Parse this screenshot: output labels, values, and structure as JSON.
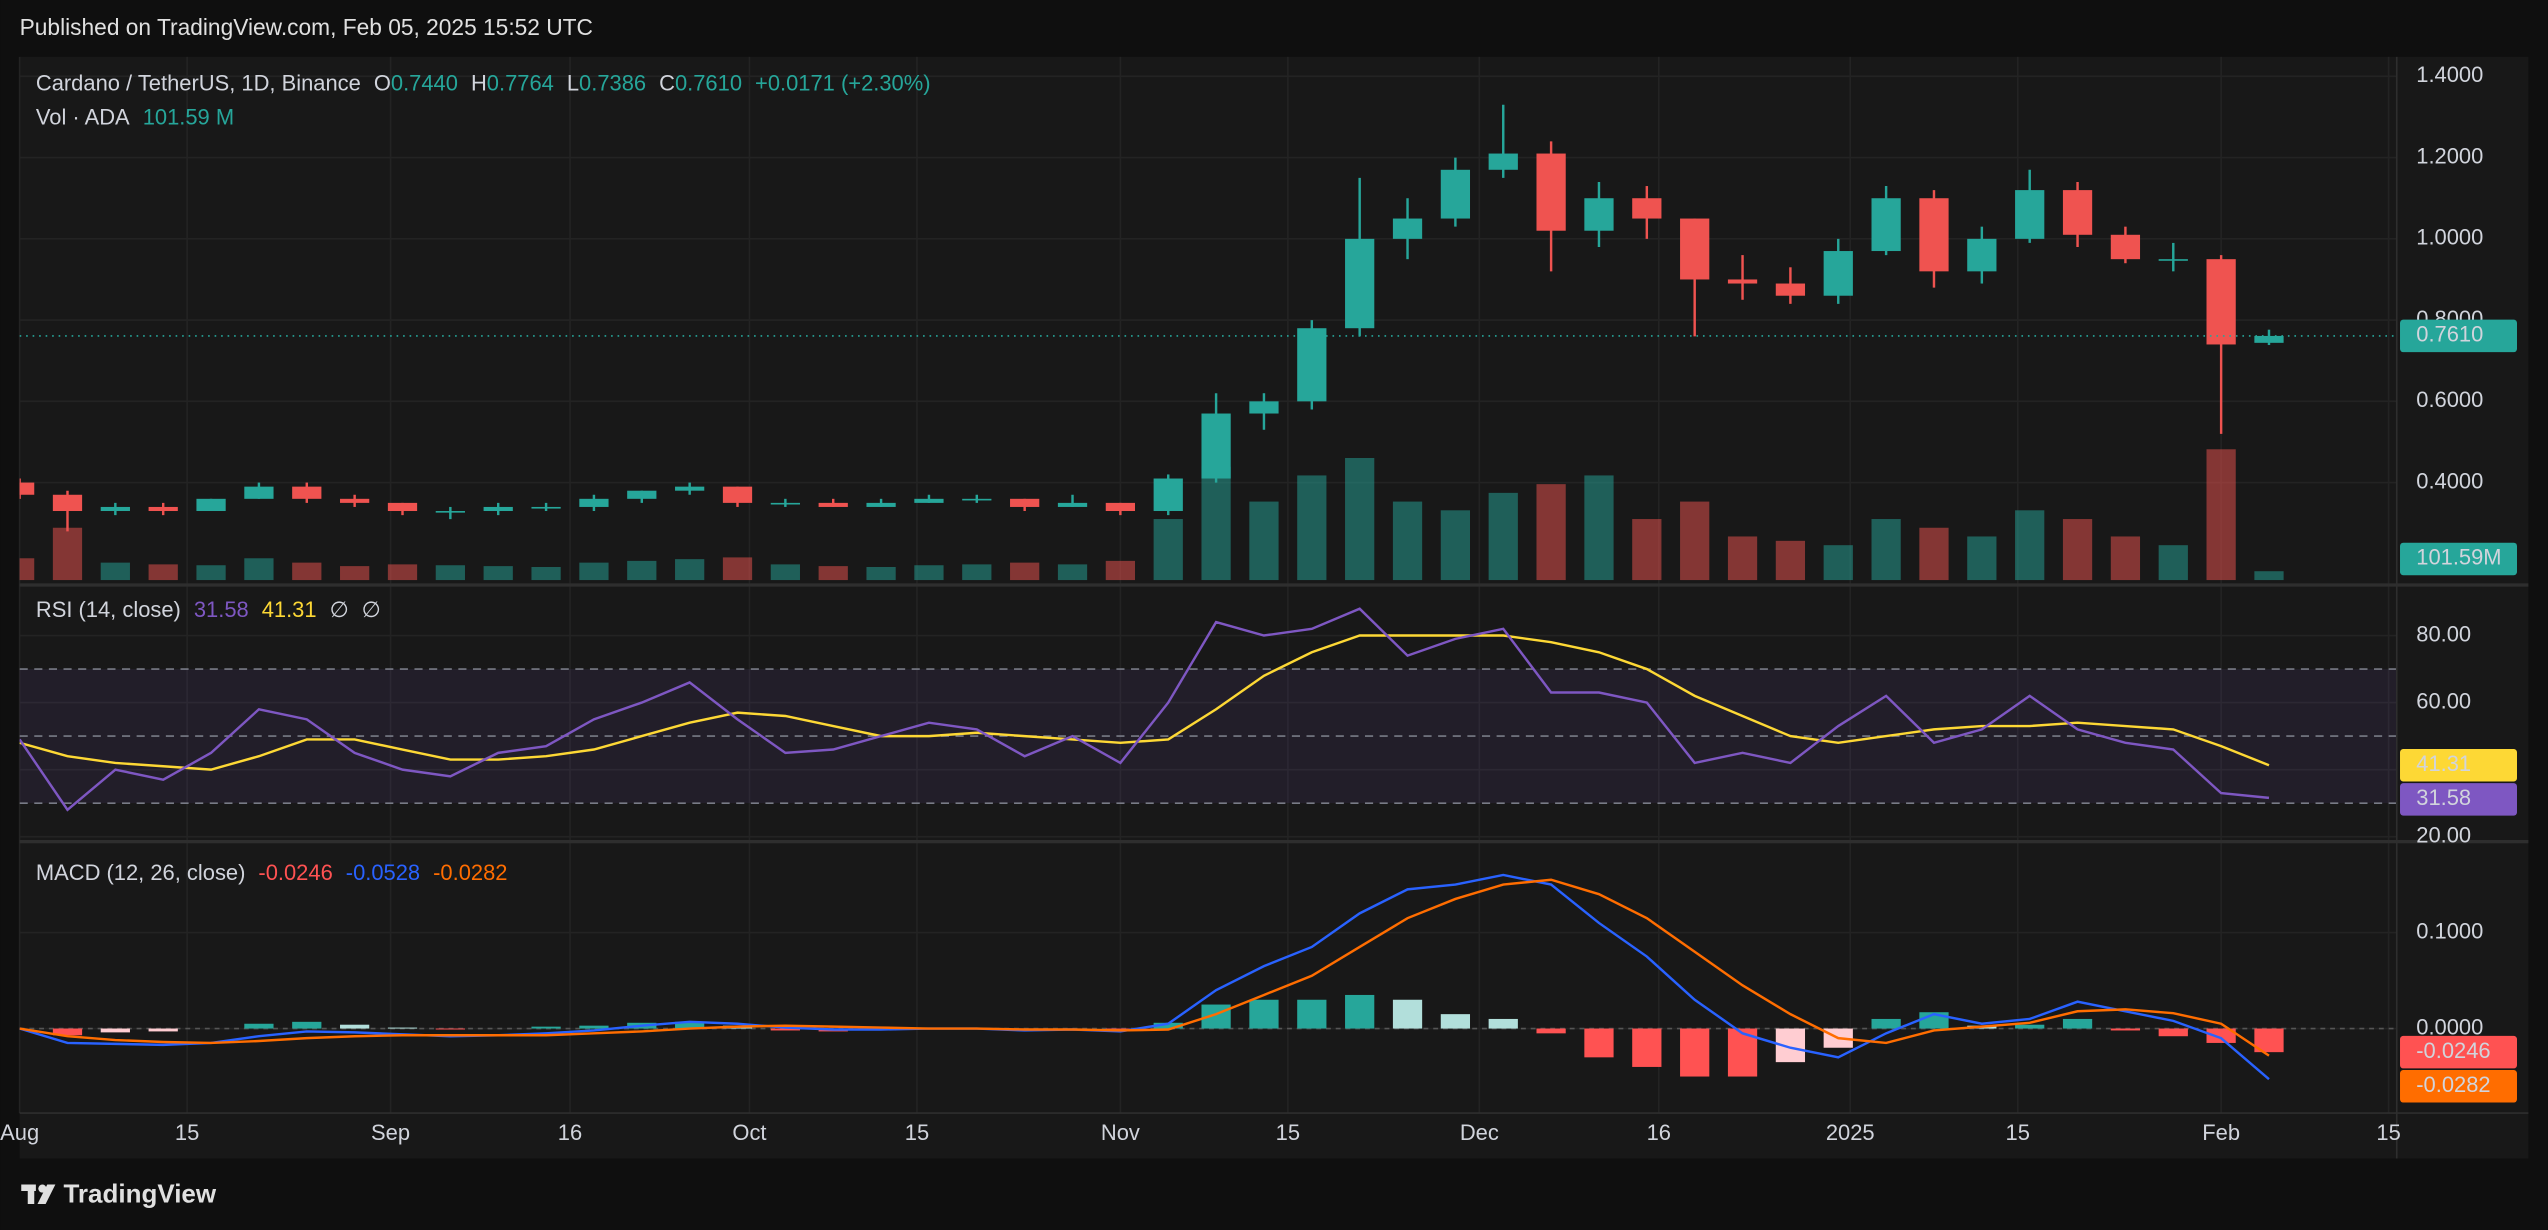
{
  "chart_data": {
    "type": "candlestick",
    "header": "Published on TradingView.com, Feb 05, 2025 15:52 UTC",
    "title": "Cardano / TetherUS, 1D, Binance",
    "legend": [
      {
        "key": "O",
        "text": "0.7440"
      },
      {
        "key": "H",
        "text": "0.7764"
      },
      {
        "key": "L",
        "text": "0.7386"
      },
      {
        "key": "C",
        "text": "0.7610"
      },
      {
        "text": "+0.0171 (+2.30%)"
      }
    ],
    "footer": "TradingView",
    "up_color": "#26a69a",
    "down_color": "#ef5350",
    "grid": true,
    "xlim": [
      "2024-08-01",
      "2025-02-15"
    ],
    "xticks": [
      {
        "value": "2024-08-01",
        "label": "Aug"
      },
      {
        "value": "2024-08-15",
        "label": "15"
      },
      {
        "value": "2024-09-01",
        "label": "Sep"
      },
      {
        "value": "2024-09-16",
        "label": "16"
      },
      {
        "value": "2024-10-01",
        "label": "Oct"
      },
      {
        "value": "2024-10-15",
        "label": "15"
      },
      {
        "value": "2024-11-01",
        "label": "Nov"
      },
      {
        "value": "2024-11-15",
        "label": "15"
      },
      {
        "value": "2024-12-01",
        "label": "Dec"
      },
      {
        "value": "2024-12-16",
        "label": "16"
      },
      {
        "value": "2025-01-01",
        "label": "2025"
      },
      {
        "value": "2025-01-15",
        "label": "15"
      },
      {
        "value": "2025-02-01",
        "label": "Feb"
      },
      {
        "value": "2025-02-15",
        "label": "15"
      }
    ],
    "ylim": [
      0.16,
      1.448
    ],
    "yticks": [
      {
        "value": 0.4,
        "label": "0.4000"
      },
      {
        "value": 0.6,
        "label": "0.6000"
      },
      {
        "value": 0.8,
        "label": "0.8000"
      },
      {
        "value": 1.0,
        "label": "1.0000"
      },
      {
        "value": 1.2,
        "label": "1.2000"
      },
      {
        "value": 1.4,
        "label": "1.4000"
      }
    ],
    "last_price": 0.761,
    "x": [
      "2024-08-01",
      "2024-08-05",
      "2024-08-09",
      "2024-08-13",
      "2024-08-17",
      "2024-08-21",
      "2024-08-25",
      "2024-08-29",
      "2024-09-02",
      "2024-09-06",
      "2024-09-10",
      "2024-09-14",
      "2024-09-18",
      "2024-09-22",
      "2024-09-26",
      "2024-09-30",
      "2024-10-04",
      "2024-10-08",
      "2024-10-12",
      "2024-10-16",
      "2024-10-20",
      "2024-10-24",
      "2024-10-28",
      "2024-11-01",
      "2024-11-05",
      "2024-11-09",
      "2024-11-13",
      "2024-11-17",
      "2024-11-21",
      "2024-11-25",
      "2024-11-29",
      "2024-12-03",
      "2024-12-07",
      "2024-12-11",
      "2024-12-15",
      "2024-12-19",
      "2024-12-23",
      "2024-12-27",
      "2024-12-31",
      "2025-01-04",
      "2025-01-08",
      "2025-01-12",
      "2025-01-16",
      "2025-01-20",
      "2025-01-24",
      "2025-01-28",
      "2025-02-01",
      "2025-02-05"
    ],
    "open": [
      0.4,
      0.37,
      0.33,
      0.34,
      0.33,
      0.36,
      0.39,
      0.36,
      0.35,
      0.33,
      0.33,
      0.34,
      0.34,
      0.36,
      0.38,
      0.39,
      0.35,
      0.35,
      0.34,
      0.35,
      0.36,
      0.36,
      0.34,
      0.35,
      0.33,
      0.41,
      0.57,
      0.6,
      0.78,
      1.0,
      1.05,
      1.17,
      1.21,
      1.02,
      1.1,
      1.05,
      0.9,
      0.89,
      0.86,
      0.97,
      1.1,
      0.92,
      1.0,
      1.12,
      1.01,
      0.95,
      0.95,
      0.744
    ],
    "high": [
      0.41,
      0.38,
      0.35,
      0.35,
      0.36,
      0.4,
      0.4,
      0.37,
      0.35,
      0.34,
      0.35,
      0.35,
      0.37,
      0.38,
      0.4,
      0.39,
      0.36,
      0.36,
      0.36,
      0.37,
      0.37,
      0.36,
      0.37,
      0.35,
      0.42,
      0.62,
      0.62,
      0.8,
      1.15,
      1.1,
      1.2,
      1.33,
      1.24,
      1.14,
      1.13,
      1.05,
      0.96,
      0.93,
      1.0,
      1.13,
      1.12,
      1.03,
      1.17,
      1.14,
      1.03,
      0.99,
      0.96,
      0.7764
    ],
    "low": [
      0.36,
      0.28,
      0.32,
      0.32,
      0.33,
      0.36,
      0.35,
      0.34,
      0.32,
      0.31,
      0.32,
      0.33,
      0.33,
      0.35,
      0.37,
      0.34,
      0.34,
      0.34,
      0.34,
      0.35,
      0.35,
      0.33,
      0.34,
      0.32,
      0.32,
      0.4,
      0.53,
      0.58,
      0.76,
      0.95,
      1.03,
      1.15,
      0.92,
      0.98,
      1.0,
      0.76,
      0.85,
      0.84,
      0.84,
      0.96,
      0.88,
      0.89,
      0.99,
      0.98,
      0.94,
      0.92,
      0.52,
      0.7386
    ],
    "close": [
      0.37,
      0.33,
      0.34,
      0.33,
      0.36,
      0.39,
      0.36,
      0.35,
      0.33,
      0.33,
      0.34,
      0.34,
      0.36,
      0.38,
      0.39,
      0.35,
      0.35,
      0.34,
      0.35,
      0.36,
      0.36,
      0.34,
      0.35,
      0.33,
      0.41,
      0.57,
      0.6,
      0.78,
      1.0,
      1.05,
      1.17,
      1.21,
      1.02,
      1.1,
      1.05,
      0.9,
      0.89,
      0.86,
      0.97,
      1.1,
      0.92,
      1.0,
      1.12,
      1.01,
      0.95,
      0.95,
      0.74,
      0.761
    ],
    "volume": {
      "name": "Vol · ADA",
      "value_label": "101.59 M",
      "axis_label": "101.59M",
      "ylim": [
        0,
        6000
      ],
      "values": [
        250,
        600,
        200,
        180,
        170,
        250,
        200,
        160,
        180,
        170,
        160,
        150,
        200,
        220,
        240,
        260,
        180,
        160,
        150,
        170,
        180,
        200,
        180,
        220,
        700,
        1300,
        900,
        1200,
        1400,
        900,
        800,
        1000,
        1100,
        1200,
        700,
        900,
        500,
        450,
        400,
        700,
        600,
        500,
        800,
        700,
        500,
        400,
        1500,
        101.59
      ]
    },
    "rsi": {
      "title": "RSI (14, close)",
      "na": [
        "∅",
        "∅"
      ],
      "ylim": [
        19,
        94.6
      ],
      "bands": [
        30,
        50,
        70
      ],
      "band_color": "#7e57c2",
      "yticks": [
        {
          "value": 20,
          "label": "20.00"
        },
        {
          "value": 40,
          "label": "40.00"
        },
        {
          "value": 60,
          "label": "60.00"
        },
        {
          "value": 80,
          "label": "80.00"
        }
      ],
      "series": [
        {
          "label": "31.58",
          "color": "#7e57c2",
          "values": [
            49,
            28,
            40,
            37,
            45,
            58,
            55,
            45,
            40,
            38,
            45,
            47,
            55,
            60,
            66,
            55,
            45,
            46,
            50,
            54,
            52,
            44,
            50,
            42,
            60,
            84,
            80,
            82,
            88,
            74,
            79,
            82,
            63,
            63,
            60,
            42,
            45,
            42,
            53,
            62,
            48,
            52,
            62,
            52,
            48,
            46,
            33,
            31.58
          ]
        },
        {
          "label": "41.31",
          "color": "#fdd835",
          "values": [
            48,
            44,
            42,
            41,
            40,
            44,
            49,
            49,
            46,
            43,
            43,
            44,
            46,
            50,
            54,
            57,
            56,
            53,
            50,
            50,
            51,
            50,
            49,
            48,
            49,
            58,
            68,
            75,
            80,
            80,
            80,
            80,
            78,
            75,
            70,
            62,
            56,
            50,
            48,
            50,
            52,
            53,
            53,
            54,
            53,
            52,
            47,
            41.31
          ]
        }
      ]
    },
    "macd": {
      "title": "MACD (12, 26, close)",
      "ylim": [
        -0.088,
        0.193
      ],
      "yticks": [
        {
          "value": 0,
          "label": "0.0000"
        },
        {
          "value": 0.1,
          "label": "0.1000"
        }
      ],
      "histogram": {
        "label": "-0.0246",
        "color": "#ff5252",
        "colors": {
          "up_strong": "#26a69a",
          "up_weak": "#b2dfdb",
          "down_strong": "#ff5252",
          "down_weak": "#ffcdd2"
        },
        "values": [
          0,
          -0.007,
          -0.004,
          -0.003,
          0,
          0.005,
          0.007,
          0.004,
          0.001,
          -0.001,
          0,
          0.002,
          0.003,
          0.006,
          0.007,
          0.003,
          -0.002,
          -0.003,
          -0.002,
          0,
          0,
          -0.001,
          0,
          -0.001,
          0.006,
          0.025,
          0.03,
          0.03,
          0.035,
          0.03,
          0.015,
          0.01,
          -0.005,
          -0.03,
          -0.04,
          -0.05,
          -0.05,
          -0.035,
          -0.02,
          0.01,
          0.017,
          0.003,
          0.004,
          0.01,
          -0.002,
          -0.008,
          -0.015,
          -0.0246
        ]
      },
      "series": [
        {
          "label": "-0.0528",
          "color": "#2962ff",
          "values": [
            0,
            -0.015,
            -0.016,
            -0.017,
            -0.015,
            -0.008,
            -0.003,
            -0.004,
            -0.006,
            -0.008,
            -0.007,
            -0.005,
            -0.002,
            0.003,
            0.007,
            0.005,
            0.001,
            -0.001,
            -0.001,
            0,
            0,
            -0.002,
            -0.001,
            -0.003,
            0.005,
            0.04,
            0.065,
            0.085,
            0.12,
            0.145,
            0.15,
            0.16,
            0.15,
            0.11,
            0.075,
            0.03,
            -0.005,
            -0.02,
            -0.03,
            -0.005,
            0.015,
            0.005,
            0.01,
            0.028,
            0.018,
            0.008,
            -0.01,
            -0.0528
          ]
        },
        {
          "label": "-0.0282",
          "color": "#ff6d00",
          "values": [
            0,
            -0.008,
            -0.012,
            -0.014,
            -0.015,
            -0.013,
            -0.01,
            -0.008,
            -0.007,
            -0.007,
            -0.007,
            -0.007,
            -0.005,
            -0.003,
            0,
            0.002,
            0.003,
            0.002,
            0.001,
            0,
            0,
            -0.001,
            -0.001,
            -0.002,
            -0.001,
            0.015,
            0.035,
            0.055,
            0.085,
            0.115,
            0.135,
            0.15,
            0.155,
            0.14,
            0.115,
            0.08,
            0.045,
            0.015,
            -0.01,
            -0.015,
            -0.002,
            0.002,
            0.006,
            0.018,
            0.02,
            0.016,
            0.005,
            -0.0282
          ]
        }
      ]
    }
  }
}
